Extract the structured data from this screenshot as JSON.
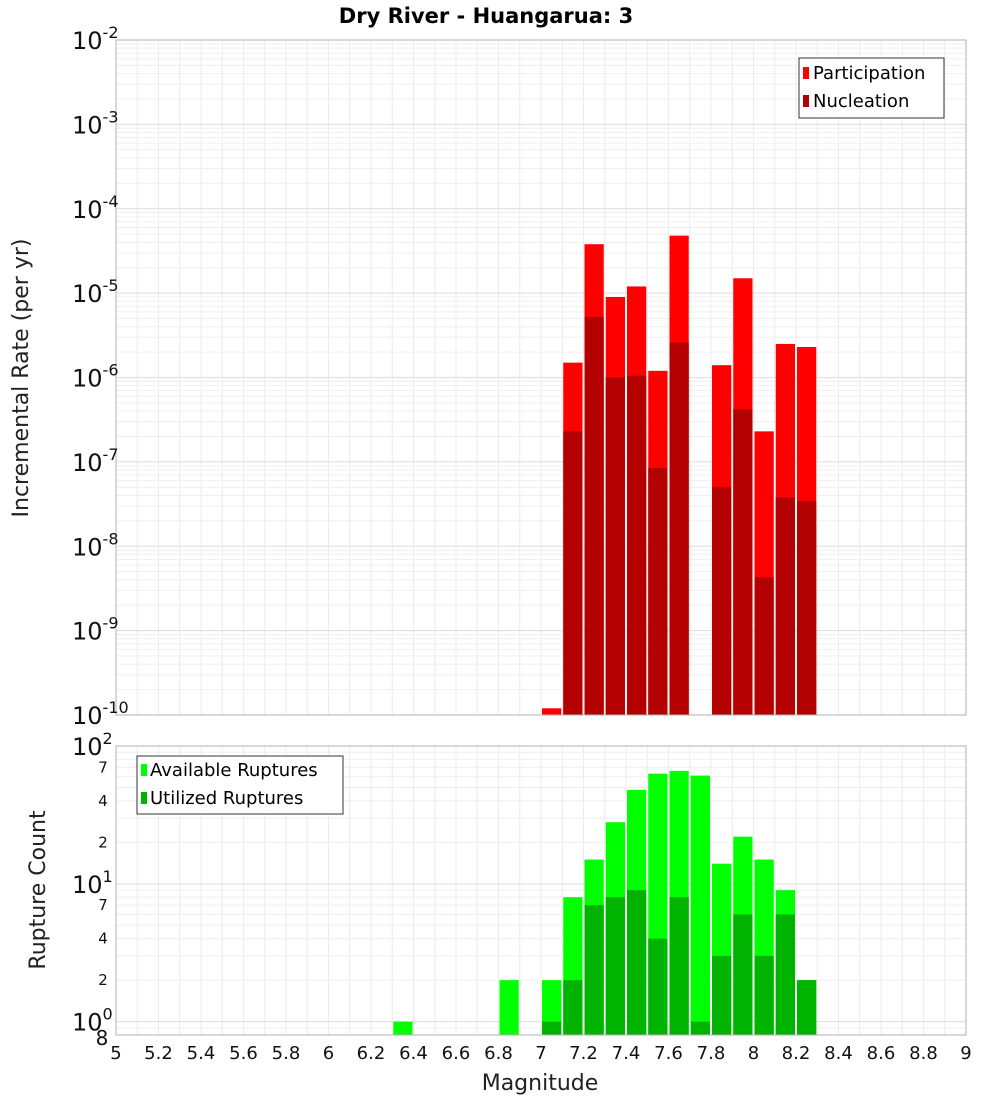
{
  "chart_data": [
    {
      "type": "bar",
      "title": "Dry River - Huangarua: 3",
      "xlabel": "",
      "ylabel": "Incremental Rate (per yr)",
      "xlim": [
        5,
        9
      ],
      "ylim": [
        1e-10,
        0.01
      ],
      "yscale": "log",
      "grid": true,
      "legend_placement": "top-right",
      "y_tick_bases": [
        "10",
        "10",
        "10",
        "10",
        "10",
        "10",
        "10",
        "10",
        "10"
      ],
      "y_tick_exponents": [
        "-10",
        "-9",
        "-8",
        "-7",
        "-6",
        "-5",
        "-4",
        "-3",
        "-2"
      ],
      "x": [
        7.05,
        7.15,
        7.25,
        7.35,
        7.45,
        7.55,
        7.65,
        7.85,
        7.95,
        8.05,
        8.15,
        8.25
      ],
      "series": [
        {
          "name": "Participation",
          "color": "#ff0000",
          "values": [
            1.2e-10,
            1.5e-06,
            3.8e-05,
            9e-06,
            1.2e-05,
            1.2e-06,
            4.8e-05,
            1.4e-06,
            1.5e-05,
            2.3e-07,
            2.5e-06,
            2.3e-06
          ]
        },
        {
          "name": "Nucleation",
          "color": "#b30000",
          "values": [
            null,
            2.3e-07,
            5.2e-06,
            1e-06,
            1.05e-06,
            8.5e-08,
            2.6e-06,
            5e-08,
            4.2e-07,
            4.3e-09,
            3.8e-08,
            3.4e-08
          ]
        }
      ]
    },
    {
      "type": "bar",
      "xlabel": "Magnitude",
      "ylabel": "Rupture Count",
      "xlim": [
        5,
        9
      ],
      "ylim": [
        0.8,
        100
      ],
      "yscale": "log",
      "grid": true,
      "legend_placement": "top-left",
      "x_ticks": [
        "5",
        "5.2",
        "5.4",
        "5.6",
        "5.8",
        "6",
        "6.2",
        "6.4",
        "6.6",
        "6.8",
        "7",
        "7.2",
        "7.4",
        "7.6",
        "7.8",
        "8",
        "8.2",
        "8.4",
        "8.6",
        "8.8",
        "9"
      ],
      "y_major_ticks": [
        {
          "value": 1,
          "base": "10",
          "exp": "0"
        },
        {
          "value": 10,
          "base": "10",
          "exp": "1"
        },
        {
          "value": 100,
          "base": "10",
          "exp": "2"
        }
      ],
      "y_minor_ticks": [
        {
          "value": 0.8,
          "label": "8"
        },
        {
          "value": 2,
          "label": "2"
        },
        {
          "value": 4,
          "label": "4"
        },
        {
          "value": 7,
          "label": "7"
        },
        {
          "value": 20,
          "label": "2"
        },
        {
          "value": 40,
          "label": "4"
        },
        {
          "value": 70,
          "label": "7"
        }
      ],
      "x": [
        6.35,
        6.85,
        7.05,
        7.15,
        7.25,
        7.35,
        7.45,
        7.55,
        7.65,
        7.75,
        7.85,
        7.95,
        8.05,
        8.15,
        8.25
      ],
      "series": [
        {
          "name": "Available Ruptures",
          "color": "#00ff00",
          "values": [
            1,
            2,
            2,
            8,
            15,
            28,
            48,
            63,
            66,
            61,
            14,
            22,
            15,
            9,
            2
          ]
        },
        {
          "name": "Utilized Ruptures",
          "color": "#00b300",
          "values": [
            null,
            null,
            1,
            2,
            7,
            8,
            9,
            4,
            8,
            1,
            3,
            6,
            3,
            6,
            2
          ]
        }
      ]
    }
  ]
}
